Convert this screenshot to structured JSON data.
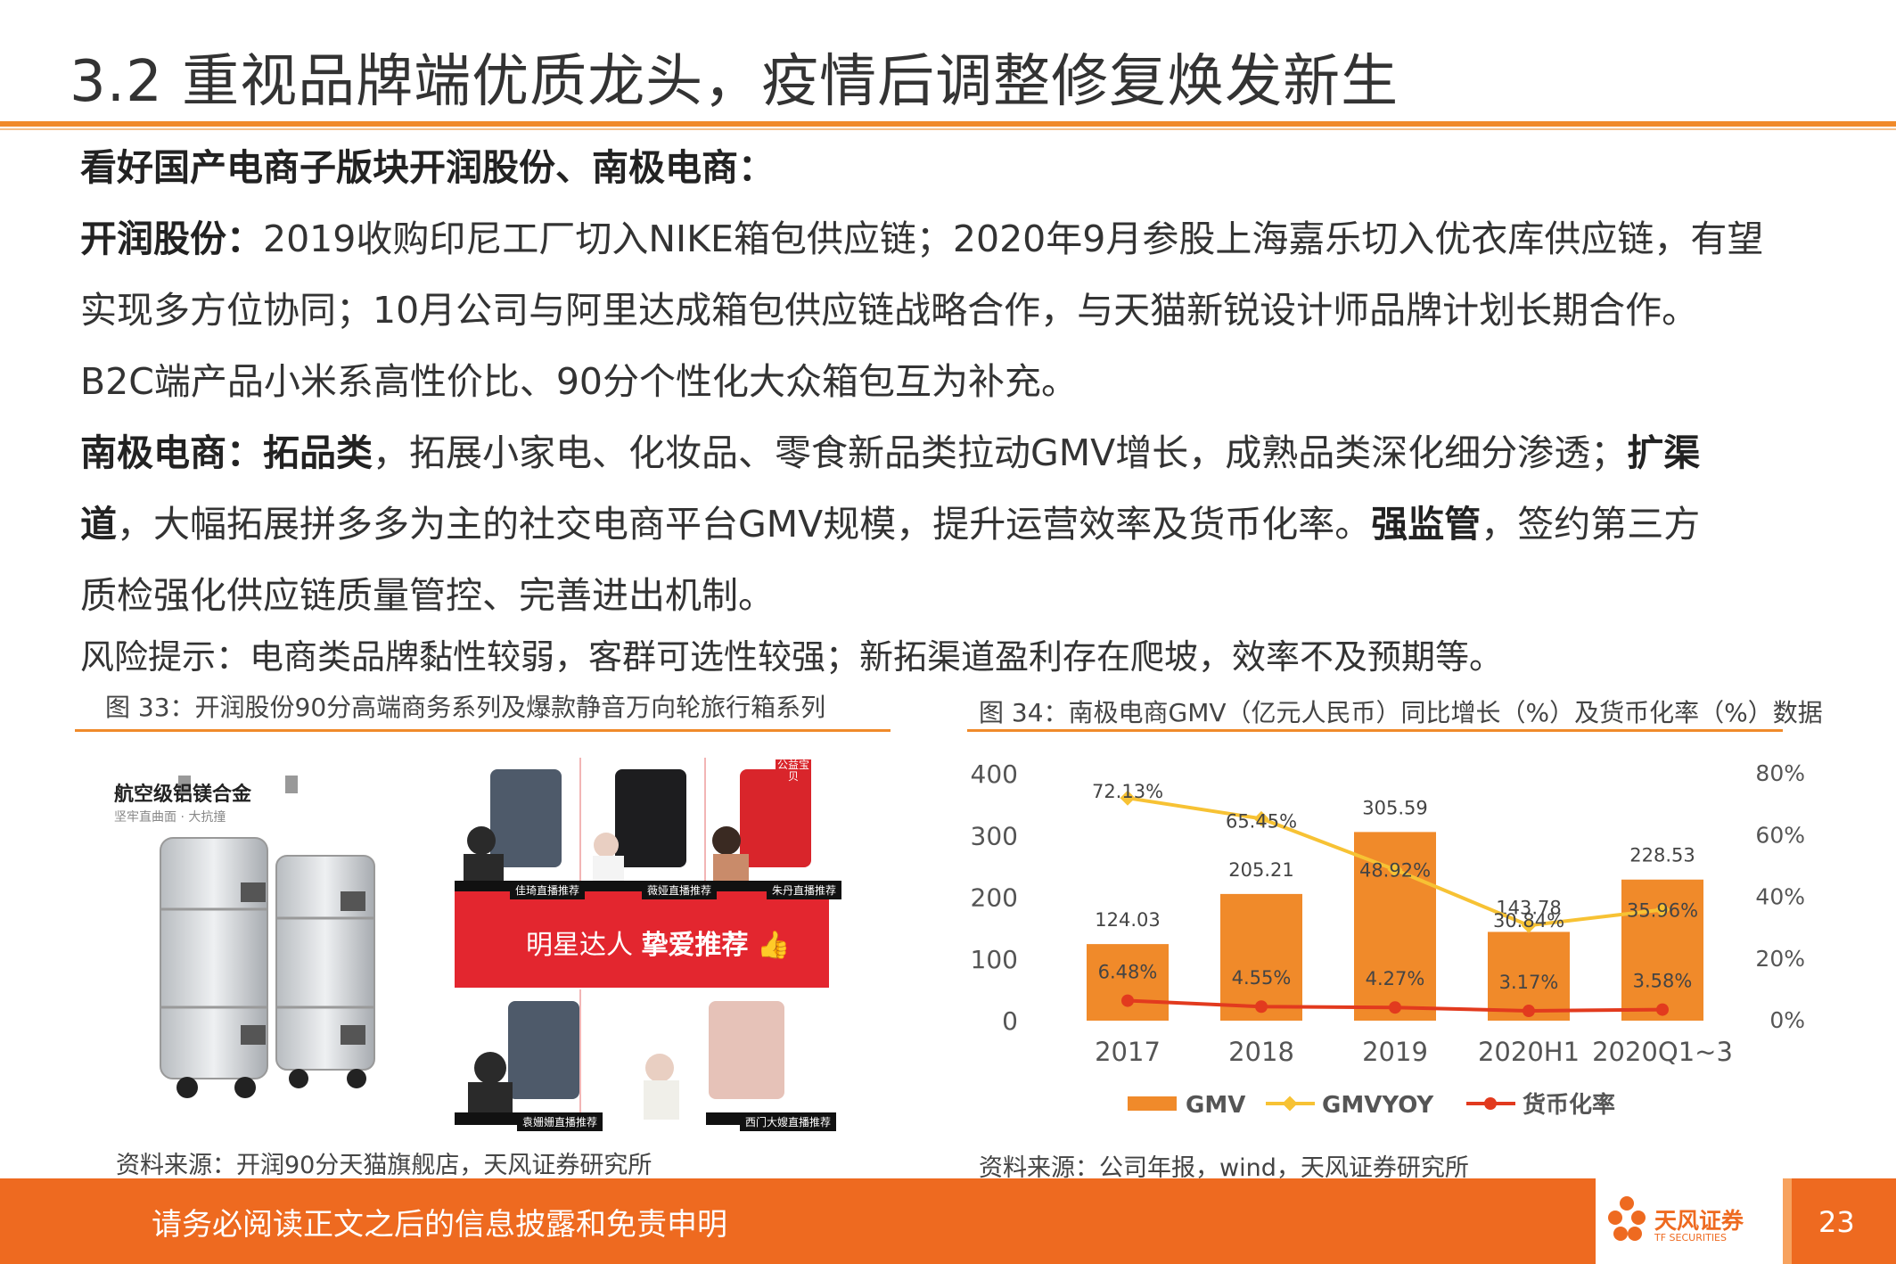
{
  "slide": {
    "title": "3.2 重视品牌端优质龙头，疫情后调整修复焕发新生",
    "headline": "看好国产电商子版块开润股份、南极电商：",
    "kr_label": "开润股份：",
    "kr_line1": "2019收购印尼工厂切入NIKE箱包供应链；2020年9月参股上海嘉乐切入优衣库供应链，有望",
    "kr_line2": "实现多方位协同；10月公司与阿里达成箱包供应链战略合作，与天猫新锐设计师品牌计划长期合作。",
    "kr_line3": "B2C端产品小米系高性价比、90分个性化大众箱包互为补充。",
    "nj_label": "南极电商：",
    "nj_b1": "拓品类",
    "nj_t1": "，拓展小家电、化妆品、零食新品类拉动GMV增长，成熟品类深化细分渗透；",
    "nj_b2a": "扩渠",
    "nj_b2b": "道",
    "nj_t2": "，大幅拓展拼多多为主的社交电商平台GMV规模，提升运营效率及货币化率。",
    "nj_b3": "强监管",
    "nj_t3": "，签约第三方",
    "nj_line3": "质检强化供应链质量管控、完善进出机制。",
    "risk": "风险提示：电商类品牌黏性较弱，客群可选性较强；新拓渠道盈利存在爬坡，效率不及预期等。"
  },
  "figure33": {
    "caption": "图 33：开润股份90分高端商务系列及爆款静音万向轮旅行箱系列",
    "source": "资料来源：开润90分天猫旗舰店，天风证券研究所",
    "image_heading": "航空级铝镁合金",
    "image_sub": "坚牢直曲面 · 大抗撞",
    "promo_text_a": "明星达人 ",
    "promo_text_b": "挚爱推荐",
    "thumb_labels": [
      "佳琦直播推荐",
      "薇娅直播推荐",
      "朱丹直播推荐",
      "袁姗姗直播推荐",
      "西门大嫂直播推荐"
    ],
    "corner_tag": "公益宝贝"
  },
  "figure34": {
    "caption": "图 34：南极电商GMV（亿元人民币）同比增长（%）及货币化率（%）数据",
    "source": "资料来源：公司年报，wind，天风证券研究所"
  },
  "chart_data": {
    "type": "bar",
    "categories": [
      "2017",
      "2018",
      "2019",
      "2020H1",
      "2020Q1~3"
    ],
    "series": [
      {
        "name": "GMV",
        "type": "bar",
        "axis": "left",
        "color": "#F08A2A",
        "values": [
          124.03,
          205.21,
          305.59,
          143.78,
          228.53
        ],
        "labels": [
          "124.03",
          "205.21",
          "305.59",
          "143.78",
          "228.53"
        ]
      },
      {
        "name": "GMVYOY",
        "type": "line",
        "axis": "right",
        "color": "#F7C234",
        "values": [
          72.13,
          65.45,
          48.92,
          30.84,
          35.96
        ],
        "labels": [
          "72.13%",
          "65.45%",
          "48.92%",
          "30.84%",
          "35.96%"
        ]
      },
      {
        "name": "货币化率",
        "type": "line",
        "axis": "right",
        "color": "#E23A1E",
        "values": [
          6.48,
          4.55,
          4.27,
          3.17,
          3.58
        ],
        "labels": [
          "6.48%",
          "4.55%",
          "4.27%",
          "3.17%",
          "3.58%"
        ]
      }
    ],
    "y_left": {
      "ticks": [
        "0",
        "100",
        "200",
        "300",
        "400"
      ],
      "range": [
        0,
        400
      ]
    },
    "y_right": {
      "ticks": [
        "0%",
        "20%",
        "40%",
        "60%",
        "80%"
      ],
      "range": [
        0,
        80
      ]
    },
    "legend_position": "bottom",
    "grid": false
  },
  "footer": {
    "disclaimer": "请务必阅读正文之后的信息披露和免责申明",
    "brand": "天风证券",
    "brand_en": "TF SECURITIES",
    "page": "23"
  }
}
